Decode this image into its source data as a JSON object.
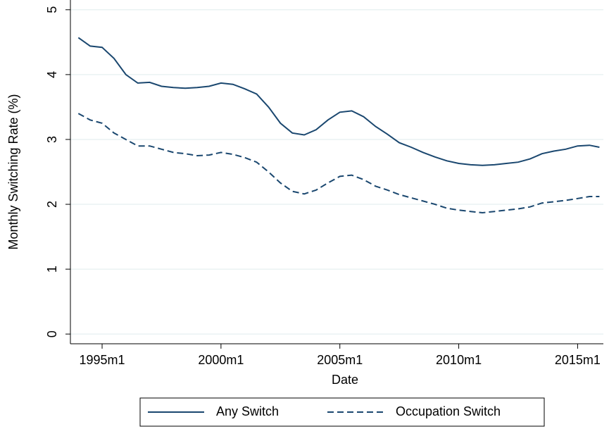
{
  "chart_data": {
    "type": "line",
    "x_label": "Date",
    "y_label": "Monthly Switching Rate (%)",
    "x": [
      408,
      414,
      420,
      426,
      432,
      438,
      444,
      450,
      456,
      462,
      468,
      474,
      480,
      486,
      492,
      498,
      504,
      510,
      516,
      522,
      528,
      534,
      540,
      546,
      552,
      558,
      564,
      570,
      576,
      582,
      588,
      594,
      600,
      606,
      612,
      618,
      624,
      630,
      636,
      642,
      648,
      654,
      660,
      666,
      671
    ],
    "series": [
      {
        "name": "Any Switch",
        "color": "#1a476f",
        "dash": false,
        "values": [
          4.57,
          4.44,
          4.42,
          4.25,
          4.0,
          3.87,
          3.88,
          3.82,
          3.8,
          3.79,
          3.8,
          3.82,
          3.87,
          3.85,
          3.78,
          3.7,
          3.5,
          3.25,
          3.1,
          3.07,
          3.15,
          3.3,
          3.42,
          3.44,
          3.35,
          3.2,
          3.08,
          2.95,
          2.88,
          2.8,
          2.73,
          2.67,
          2.63,
          2.61,
          2.6,
          2.61,
          2.63,
          2.65,
          2.7,
          2.78,
          2.82,
          2.85,
          2.9,
          2.91,
          2.88
        ]
      },
      {
        "name": "Occupation Switch",
        "color": "#1a476f",
        "dash": true,
        "values": [
          3.4,
          3.3,
          3.25,
          3.1,
          3.0,
          2.9,
          2.9,
          2.85,
          2.8,
          2.78,
          2.75,
          2.76,
          2.8,
          2.77,
          2.72,
          2.65,
          2.5,
          2.33,
          2.2,
          2.16,
          2.22,
          2.33,
          2.43,
          2.45,
          2.38,
          2.28,
          2.22,
          2.15,
          2.1,
          2.05,
          2.0,
          1.94,
          1.91,
          1.89,
          1.87,
          1.89,
          1.91,
          1.93,
          1.96,
          2.02,
          2.04,
          2.06,
          2.09,
          2.12,
          2.12
        ]
      }
    ],
    "xlim": [
      404,
      673
    ],
    "xticks": [
      {
        "value": 420,
        "label": "1995m1"
      },
      {
        "value": 480,
        "label": "2000m1"
      },
      {
        "value": 540,
        "label": "2005m1"
      },
      {
        "value": 600,
        "label": "2010m1"
      },
      {
        "value": 660,
        "label": "2015m1"
      }
    ],
    "ylim": [
      -0.15,
      5.15
    ],
    "yticks": [
      0,
      1,
      2,
      3,
      4,
      5
    ],
    "grid": true,
    "legend": "bottom"
  }
}
